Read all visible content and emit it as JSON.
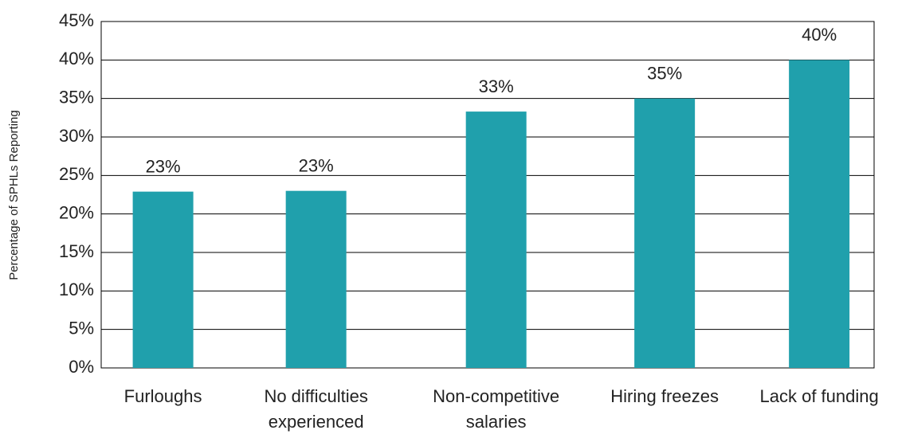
{
  "chart_data": {
    "type": "bar",
    "y_axis_label": "Percentage of SPHLs Reporting",
    "categories": [
      "Furloughs",
      "No difficulties experienced",
      "Non-competitive salaries",
      "Hiring freezes",
      "Lack of funding"
    ],
    "values": [
      22.9,
      23.0,
      33.3,
      35.0,
      40.0
    ],
    "value_labels": [
      "23%",
      "23%",
      "33%",
      "35%",
      "40%"
    ],
    "color": "#20a0ac",
    "ylim": [
      0,
      45
    ],
    "yticks": [
      {
        "value": 0,
        "label": "0%"
      },
      {
        "value": 5,
        "label": "5%"
      },
      {
        "value": 10,
        "label": "10%"
      },
      {
        "value": 15,
        "label": "15%"
      },
      {
        "value": 20,
        "label": "20%"
      },
      {
        "value": 25,
        "label": "25%"
      },
      {
        "value": 30,
        "label": "30%"
      },
      {
        "value": 35,
        "label": "35%"
      },
      {
        "value": 40,
        "label": "40%"
      },
      {
        "value": 45,
        "label": "45%"
      }
    ],
    "grid": true
  }
}
